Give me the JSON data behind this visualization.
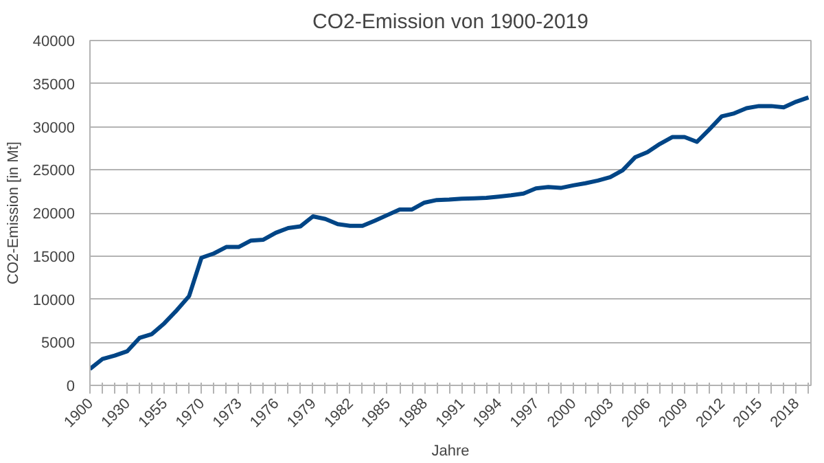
{
  "chart_data": {
    "type": "line",
    "title": "CO2-Emission von 1900-2019",
    "xlabel": "Jahre",
    "ylabel": "CO2-Emission [in Mt]",
    "categories": [
      "1900",
      null,
      null,
      "1930",
      null,
      null,
      "1955",
      null,
      null,
      "1970",
      null,
      null,
      "1973",
      null,
      null,
      "1976",
      null,
      null,
      "1979",
      null,
      null,
      "1982",
      null,
      null,
      "1985",
      null,
      null,
      "1988",
      null,
      null,
      "1991",
      null,
      null,
      "1994",
      null,
      null,
      "1997",
      null,
      null,
      "2000",
      null,
      null,
      "2003",
      null,
      null,
      "2006",
      null,
      null,
      "2009",
      null,
      null,
      "2012",
      null,
      null,
      "2015",
      null,
      null,
      "2018",
      null
    ],
    "series": [
      {
        "color": "#004586",
        "values": [
          1900,
          3050,
          3450,
          3950,
          5500,
          5950,
          7200,
          8700,
          10350,
          14800,
          15300,
          16050,
          16050,
          16800,
          16900,
          17700,
          18250,
          18450,
          19600,
          19300,
          18700,
          18500,
          18500,
          19100,
          19750,
          20400,
          20400,
          21200,
          21500,
          21550,
          21650,
          21700,
          21750,
          21900,
          22050,
          22250,
          22850,
          23000,
          22900,
          23200,
          23450,
          23750,
          24150,
          24950,
          26450,
          27050,
          28000,
          28800,
          28800,
          28250,
          29700,
          31200,
          31550,
          32150,
          32400,
          32400,
          32250,
          32900,
          33400
        ]
      }
    ],
    "ylim": [
      0,
      40000
    ],
    "yticks": [
      0,
      5000,
      10000,
      15000,
      20000,
      25000,
      30000,
      35000,
      40000
    ],
    "grid": "y",
    "marker": "none",
    "line_style": "solid"
  }
}
